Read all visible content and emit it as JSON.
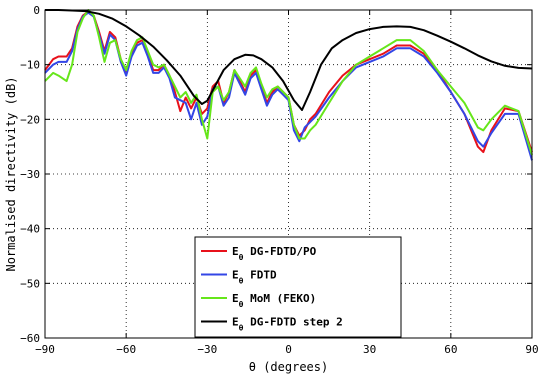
{
  "chart_data": {
    "type": "line",
    "xlabel": "θ (degrees)",
    "ylabel": "Normalised directivity (dB)",
    "xlim": [
      -90,
      90
    ],
    "ylim": [
      -60,
      0
    ],
    "xticks": [
      -90,
      -60,
      -30,
      0,
      30,
      60,
      90
    ],
    "yticks": [
      0,
      -10,
      -20,
      -30,
      -40,
      -50,
      -60
    ],
    "xtick_labels": [
      "−90",
      "−60",
      "−30",
      "0",
      "30",
      "60",
      "90"
    ],
    "ytick_labels": [
      "0",
      "−10",
      "−20",
      "−30",
      "−40",
      "−50",
      "−60"
    ],
    "grid": true,
    "legend_position": "bottom-center",
    "series": [
      {
        "name": "DG-FDTD/PO",
        "legend_symbol": "E",
        "legend_subscript": "θ",
        "color": "#e8111b",
        "x": [
          -90,
          -87,
          -85,
          -82,
          -80,
          -78,
          -76,
          -74,
          -72,
          -70,
          -68,
          -66,
          -64,
          -62,
          -60,
          -58,
          -56,
          -54,
          -52,
          -50,
          -48,
          -46,
          -44,
          -42,
          -40,
          -38,
          -36,
          -34,
          -32,
          -30,
          -28,
          -26,
          -24,
          -22,
          -20,
          -18,
          -16,
          -14,
          -12,
          -10,
          -8,
          -6,
          -4,
          -2,
          0,
          2,
          4,
          6,
          8,
          10,
          15,
          20,
          25,
          30,
          35,
          40,
          45,
          50,
          55,
          60,
          65,
          70,
          72,
          75,
          80,
          85,
          90
        ],
        "y": [
          -11,
          -9,
          -8.5,
          -8.5,
          -7,
          -3,
          -1,
          -0.3,
          -1,
          -4,
          -7.5,
          -4,
          -5,
          -9,
          -11.5,
          -8,
          -6,
          -5.5,
          -8,
          -11,
          -11,
          -10,
          -12,
          -15,
          -18.5,
          -16,
          -18,
          -16,
          -19,
          -18,
          -14,
          -13,
          -17,
          -15,
          -11,
          -13,
          -15,
          -12,
          -11,
          -14,
          -17,
          -15,
          -14,
          -15,
          -16,
          -21,
          -23,
          -22,
          -20,
          -19,
          -15,
          -12,
          -10,
          -9,
          -8,
          -6.5,
          -6.5,
          -8,
          -11,
          -15,
          -19,
          -25,
          -26,
          -22,
          -18,
          -18.5,
          -26
        ]
      },
      {
        "name": "FDTD",
        "legend_symbol": "E",
        "legend_subscript": "θ",
        "color": "#3346e6",
        "x": [
          -90,
          -87,
          -85,
          -82,
          -80,
          -78,
          -76,
          -74,
          -72,
          -70,
          -68,
          -66,
          -64,
          -62,
          -60,
          -58,
          -56,
          -54,
          -52,
          -50,
          -48,
          -46,
          -44,
          -42,
          -40,
          -38,
          -36,
          -34,
          -32,
          -30,
          -28,
          -26,
          -24,
          -22,
          -20,
          -18,
          -16,
          -14,
          -12,
          -10,
          -8,
          -6,
          -4,
          -2,
          0,
          2,
          4,
          6,
          8,
          10,
          15,
          20,
          25,
          30,
          35,
          40,
          45,
          50,
          55,
          60,
          65,
          70,
          72,
          75,
          80,
          85,
          90
        ],
        "y": [
          -11.5,
          -10,
          -9.5,
          -9.5,
          -7.5,
          -3.5,
          -1.2,
          -0.5,
          -1.2,
          -4.5,
          -8,
          -4.5,
          -5.5,
          -9.5,
          -12,
          -8.5,
          -6.5,
          -6,
          -8.5,
          -11.5,
          -11.5,
          -10.5,
          -12.5,
          -16,
          -16.5,
          -17,
          -20,
          -17,
          -21,
          -19.5,
          -14.5,
          -14,
          -17.5,
          -16,
          -11.5,
          -13.5,
          -15.5,
          -12.5,
          -11.5,
          -14.5,
          -17.5,
          -15.5,
          -14.5,
          -15.5,
          -16.5,
          -22,
          -24,
          -21.5,
          -20.5,
          -19.5,
          -16,
          -13,
          -10.5,
          -9.5,
          -8.5,
          -7,
          -7,
          -8.5,
          -11.5,
          -15,
          -19,
          -24,
          -25,
          -22.5,
          -19,
          -19,
          -27.5
        ]
      },
      {
        "name": "MoM (FEKO)",
        "legend_symbol": "E",
        "legend_subscript": "θ",
        "color": "#66e61a",
        "x": [
          -90,
          -87,
          -85,
          -82,
          -80,
          -78,
          -76,
          -74,
          -72,
          -70,
          -68,
          -66,
          -64,
          -62,
          -60,
          -58,
          -56,
          -54,
          -52,
          -50,
          -48,
          -46,
          -44,
          -42,
          -40,
          -38,
          -36,
          -34,
          -32,
          -30,
          -28,
          -26,
          -24,
          -22,
          -20,
          -18,
          -16,
          -14,
          -12,
          -10,
          -8,
          -6,
          -4,
          -2,
          0,
          2,
          4,
          6,
          8,
          10,
          15,
          20,
          25,
          30,
          35,
          40,
          45,
          50,
          55,
          60,
          65,
          70,
          72,
          75,
          80,
          85,
          90
        ],
        "y": [
          -13,
          -11.5,
          -12,
          -13,
          -10,
          -4,
          -1.5,
          0,
          -1,
          -5,
          -9.5,
          -6,
          -5.5,
          -9,
          -11,
          -7.5,
          -5.5,
          -5,
          -7.5,
          -10,
          -10.5,
          -10,
          -12,
          -14,
          -16,
          -15,
          -17,
          -15.5,
          -20,
          -23.5,
          -15,
          -14,
          -16.5,
          -15,
          -11,
          -12.5,
          -14,
          -11.5,
          -10.5,
          -13.5,
          -16,
          -14.5,
          -14,
          -15,
          -16,
          -21,
          -23.5,
          -23.5,
          -22,
          -21,
          -17,
          -13,
          -10,
          -8.5,
          -7,
          -5.5,
          -5.5,
          -7.5,
          -11,
          -14,
          -17,
          -21.5,
          -22,
          -20,
          -17.5,
          -18.5,
          -26.5
        ]
      },
      {
        "name": "DG-FDTD step 2",
        "legend_symbol": "E",
        "legend_subscript": "θ",
        "color": "#000000",
        "x": [
          -90,
          -85,
          -80,
          -75,
          -70,
          -65,
          -60,
          -55,
          -50,
          -45,
          -40,
          -35,
          -32,
          -30,
          -27,
          -24,
          -20,
          -16,
          -13,
          -10,
          -6,
          -2,
          2,
          5,
          8,
          12,
          16,
          20,
          25,
          30,
          35,
          40,
          45,
          50,
          55,
          60,
          65,
          70,
          75,
          80,
          85,
          90
        ],
        "y": [
          0,
          0,
          -0.1,
          -0.2,
          -0.7,
          -1.6,
          -3,
          -4.7,
          -6.7,
          -9.2,
          -12,
          -15.7,
          -17.2,
          -16.6,
          -13.8,
          -11,
          -9,
          -8.2,
          -8.3,
          -9,
          -10.5,
          -13,
          -16.5,
          -18.3,
          -15,
          -10,
          -7,
          -5.5,
          -4.2,
          -3.5,
          -3.1,
          -3,
          -3.1,
          -3.7,
          -4.7,
          -5.8,
          -7,
          -8.3,
          -9.4,
          -10.2,
          -10.6,
          -10.7
        ]
      }
    ]
  }
}
